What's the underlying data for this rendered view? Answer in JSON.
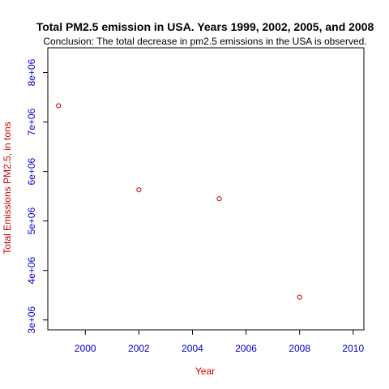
{
  "chart_data": {
    "type": "scatter",
    "title": "Total PM2.5 emission in USA. Years 1999, 2002, 2005, and 2008",
    "subtitle": "Conclusion: The total decrease in pm2.5 emissions in the USA is observed.",
    "xlabel": "Year",
    "ylabel": "Total Emissions PM2.5, in tons",
    "xlim": [
      1998.6,
      2010.4
    ],
    "ylim": [
      2800000,
      8500000
    ],
    "x_ticks": [
      2000,
      2002,
      2004,
      2006,
      2008,
      2010
    ],
    "x_tick_labels": [
      "2000",
      "2002",
      "2004",
      "2006",
      "2008",
      "2010"
    ],
    "y_ticks": [
      3000000,
      4000000,
      5000000,
      6000000,
      7000000,
      8000000
    ],
    "y_tick_labels": [
      "3e+06",
      "4e+06",
      "5e+06",
      "6e+06",
      "7e+06",
      "8e+06"
    ],
    "grid": false,
    "legend": "none",
    "points": [
      {
        "x": 1999,
        "y": 7330000
      },
      {
        "x": 2002,
        "y": 5630000
      },
      {
        "x": 2005,
        "y": 5450000
      },
      {
        "x": 2008,
        "y": 3460000
      }
    ],
    "colors": {
      "points": "#cc0000",
      "tick_labels": "#0000cc",
      "axis_labels": "#cc0000",
      "axes": "#000000",
      "title": "#000000"
    }
  }
}
